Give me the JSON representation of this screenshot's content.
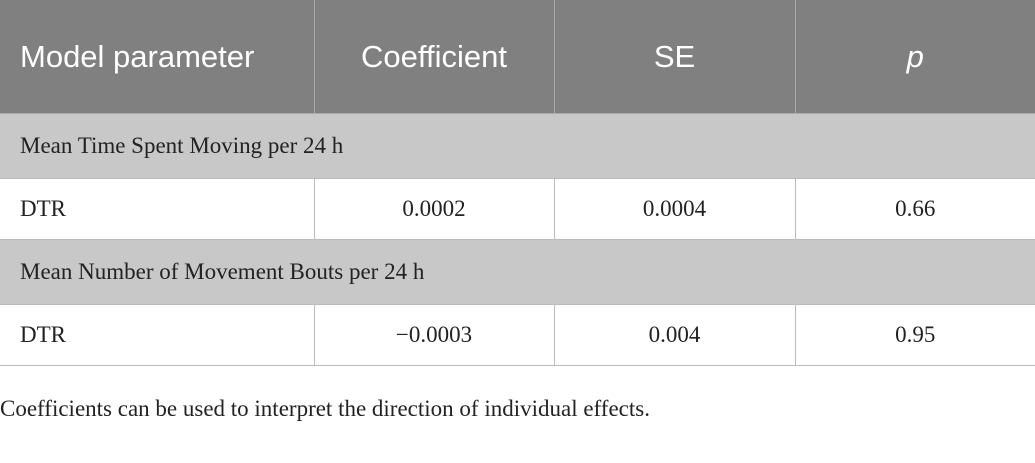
{
  "table": {
    "header": [
      "Model parameter",
      "Coefficient",
      "SE",
      "p"
    ],
    "sections": [
      {
        "title": "Mean Time Spent Moving per 24 h",
        "rows": [
          [
            "DTR",
            "0.0002",
            "0.0004",
            "0.66"
          ]
        ]
      },
      {
        "title": "Mean Number of Movement Bouts per 24 h",
        "rows": [
          [
            "DTR",
            "−0.0003",
            "0.004",
            "0.95"
          ]
        ]
      }
    ]
  },
  "footnote": "Coefficients can be used to interpret the direction of individual effects."
}
